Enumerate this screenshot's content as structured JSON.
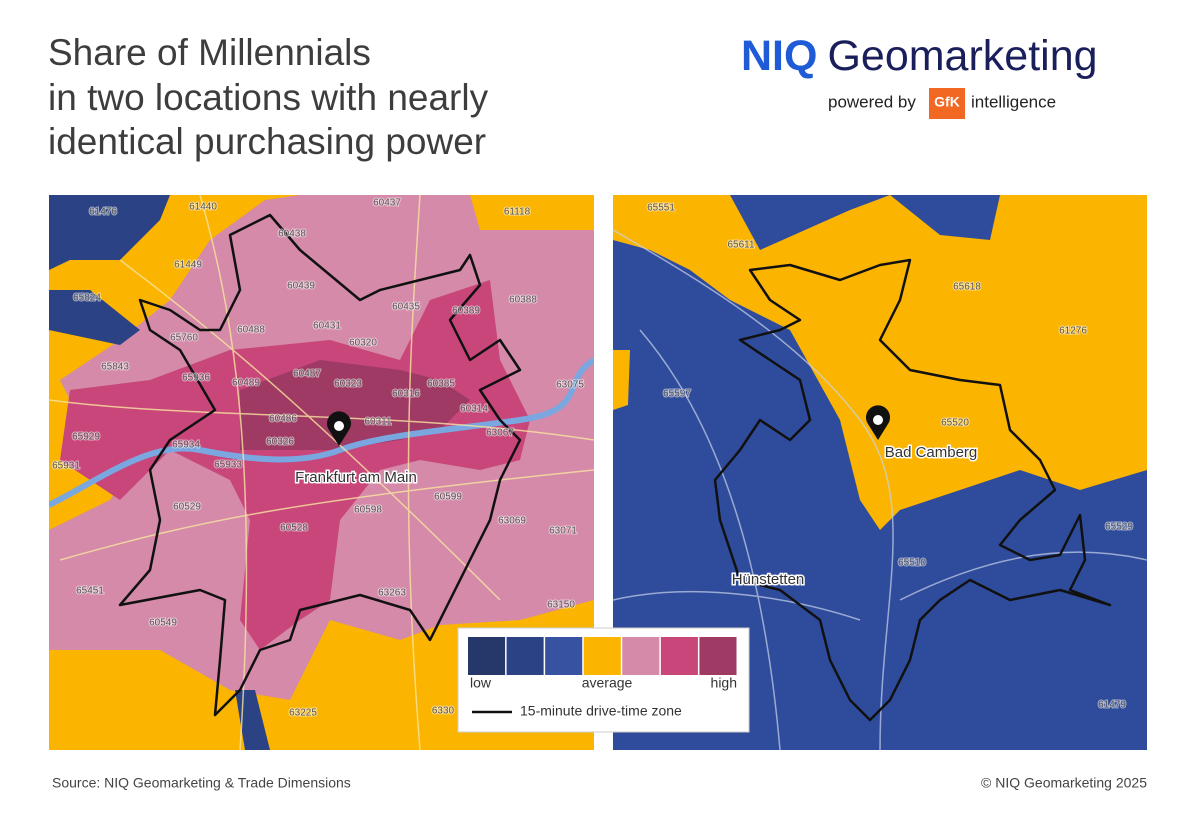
{
  "header": {
    "title_lines": [
      "Share of Millennials",
      "in two locations with nearly",
      "identical purchasing power"
    ],
    "logo": {
      "brand": "NIQ",
      "name": "Geomarketing",
      "powered_by": "powered by",
      "gfk": "GfK",
      "intelligence": "intelligence"
    }
  },
  "maps": [
    {
      "postcodes": [
        "61476",
        "61440",
        "60437",
        "61118",
        "60438",
        "61449",
        "65824",
        "60439",
        "60388",
        "60488",
        "60431",
        "60435",
        "60389",
        "65760",
        "60320",
        "65843",
        "65936",
        "60489",
        "60487",
        "60323",
        "60316",
        "60385",
        "63075",
        "60314",
        "65929",
        "60486",
        "60311",
        "63067",
        "65934",
        "60326",
        "65931",
        "65933",
        "60599",
        "60529",
        "60598",
        "63069",
        "63071",
        "60528",
        "65451",
        "63263",
        "63150",
        "60549",
        "63225",
        "6330"
      ],
      "places": [
        "Frankfurt am Main"
      ]
    },
    {
      "postcodes": [
        "65551",
        "65611",
        "65618",
        "61276",
        "65597",
        "65520",
        "65529",
        "65510",
        "61479"
      ],
      "places": [
        "Bad Camberg",
        "Hünstetten"
      ]
    }
  ],
  "legend": {
    "colors": [
      "#263869",
      "#2b4384",
      "#3652a0",
      "#fbb400",
      "#d48aa8",
      "#c8467a",
      "#9e3a63"
    ],
    "low": "low",
    "average": "average",
    "high": "high",
    "line_label": "15-minute drive-time zone"
  },
  "footer": {
    "source": "Source: NIQ Geomarketing & Trade Dimensions",
    "copyright": "© NIQ Geomarketing 2025"
  }
}
